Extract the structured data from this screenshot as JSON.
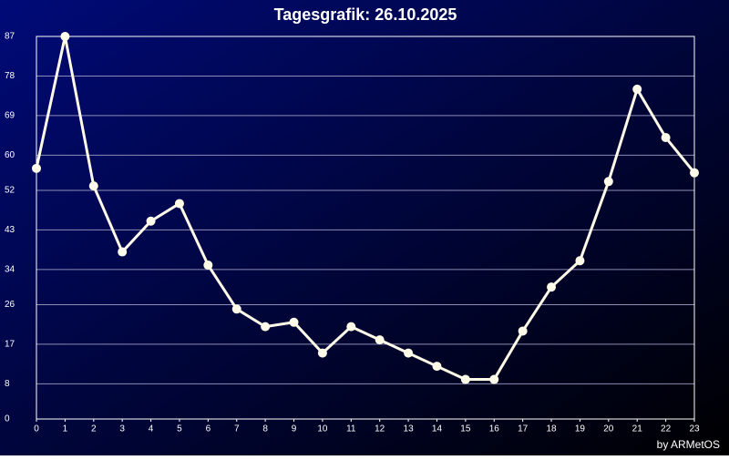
{
  "chart_data": {
    "type": "line",
    "title": "Tagesgrafik: 26.10.2025",
    "credit": "by ARMetOS",
    "x": [
      0,
      1,
      2,
      3,
      4,
      5,
      6,
      7,
      8,
      9,
      10,
      11,
      12,
      13,
      14,
      15,
      16,
      17,
      18,
      19,
      20,
      21,
      22,
      23
    ],
    "values": [
      57,
      87,
      53,
      38,
      45,
      49,
      35,
      25,
      21,
      22,
      15,
      21,
      18,
      15,
      12,
      9,
      9,
      20,
      30,
      36,
      54,
      75,
      64,
      56
    ],
    "color": "#fffbe8",
    "xlim": [
      0,
      23
    ],
    "xticks": [
      0,
      1,
      2,
      3,
      4,
      5,
      6,
      7,
      8,
      9,
      10,
      11,
      12,
      13,
      14,
      15,
      16,
      17,
      18,
      19,
      20,
      21,
      22,
      23
    ],
    "ylim": [
      0,
      87
    ],
    "yticks": [
      0,
      8,
      17,
      26,
      34,
      43,
      52,
      60,
      69,
      78,
      87
    ],
    "grid": true
  }
}
